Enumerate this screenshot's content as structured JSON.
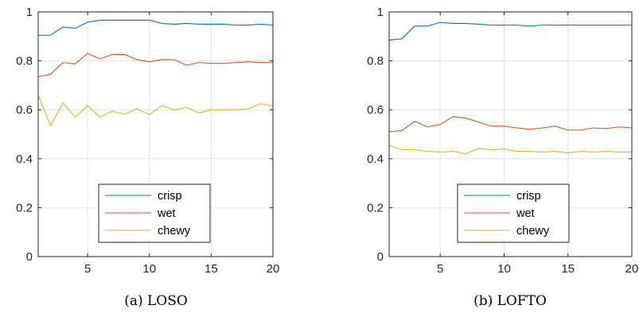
{
  "chart_data": [
    {
      "type": "line",
      "caption": "(a) LOSO",
      "xlim": [
        1,
        20
      ],
      "ylim": [
        0,
        1
      ],
      "xticks": [
        5,
        10,
        15,
        20
      ],
      "xtick_labels": [
        "5",
        "10",
        "15",
        "20"
      ],
      "yticks": [
        0,
        0.2,
        0.4,
        0.6,
        0.8,
        1
      ],
      "ytick_labels": [
        "0",
        "0.2",
        "0.4",
        "0.6",
        "0.8",
        "1"
      ],
      "grid": true,
      "legend_position": "bottom-center",
      "x": [
        1,
        2,
        3,
        4,
        5,
        6,
        7,
        8,
        9,
        10,
        11,
        12,
        13,
        14,
        15,
        16,
        17,
        18,
        19,
        20
      ],
      "series": [
        {
          "name": "crisp",
          "color": "#0072BD",
          "values": [
            0.905,
            0.905,
            0.938,
            0.933,
            0.958,
            0.966,
            0.966,
            0.966,
            0.966,
            0.966,
            0.953,
            0.95,
            0.953,
            0.95,
            0.95,
            0.95,
            0.946,
            0.946,
            0.95,
            0.946
          ]
        },
        {
          "name": "wet",
          "color": "#D95319",
          "values": [
            0.735,
            0.745,
            0.793,
            0.788,
            0.83,
            0.808,
            0.826,
            0.826,
            0.805,
            0.796,
            0.805,
            0.805,
            0.782,
            0.793,
            0.79,
            0.79,
            0.793,
            0.796,
            0.793,
            0.793
          ]
        },
        {
          "name": "chewy",
          "color": "#EDB120",
          "values": [
            0.66,
            0.535,
            0.628,
            0.57,
            0.617,
            0.57,
            0.594,
            0.582,
            0.604,
            0.58,
            0.617,
            0.6,
            0.61,
            0.587,
            0.6,
            0.6,
            0.6,
            0.604,
            0.625,
            0.615
          ]
        }
      ]
    },
    {
      "type": "line",
      "caption": "(b) LOFTO",
      "xlim": [
        1,
        20
      ],
      "ylim": [
        0,
        1
      ],
      "xticks": [
        5,
        10,
        15,
        20
      ],
      "xtick_labels": [
        "5",
        "10",
        "15",
        "20"
      ],
      "yticks": [
        0,
        0.2,
        0.4,
        0.6,
        0.8,
        1
      ],
      "ytick_labels": [
        "0",
        "0.2",
        "0.4",
        "0.6",
        "0.8",
        "1"
      ],
      "grid": true,
      "legend_position": "bottom-center",
      "x": [
        1,
        2,
        3,
        4,
        5,
        6,
        7,
        8,
        9,
        10,
        11,
        12,
        13,
        14,
        15,
        16,
        17,
        18,
        19,
        20
      ],
      "series": [
        {
          "name": "crisp",
          "color": "#0072BD",
          "values": [
            0.885,
            0.89,
            0.942,
            0.942,
            0.957,
            0.953,
            0.953,
            0.95,
            0.946,
            0.946,
            0.946,
            0.942,
            0.946,
            0.946,
            0.946,
            0.946,
            0.946,
            0.946,
            0.946,
            0.946
          ]
        },
        {
          "name": "wet",
          "color": "#D95319",
          "values": [
            0.51,
            0.515,
            0.553,
            0.53,
            0.54,
            0.572,
            0.566,
            0.55,
            0.533,
            0.533,
            0.526,
            0.52,
            0.526,
            0.533,
            0.517,
            0.517,
            0.526,
            0.523,
            0.53,
            0.526
          ]
        },
        {
          "name": "chewy",
          "color": "#EDB120",
          "values": [
            0.455,
            0.437,
            0.437,
            0.43,
            0.427,
            0.43,
            0.42,
            0.442,
            0.437,
            0.44,
            0.43,
            0.43,
            0.427,
            0.43,
            0.424,
            0.43,
            0.427,
            0.43,
            0.427,
            0.427
          ]
        }
      ]
    }
  ]
}
